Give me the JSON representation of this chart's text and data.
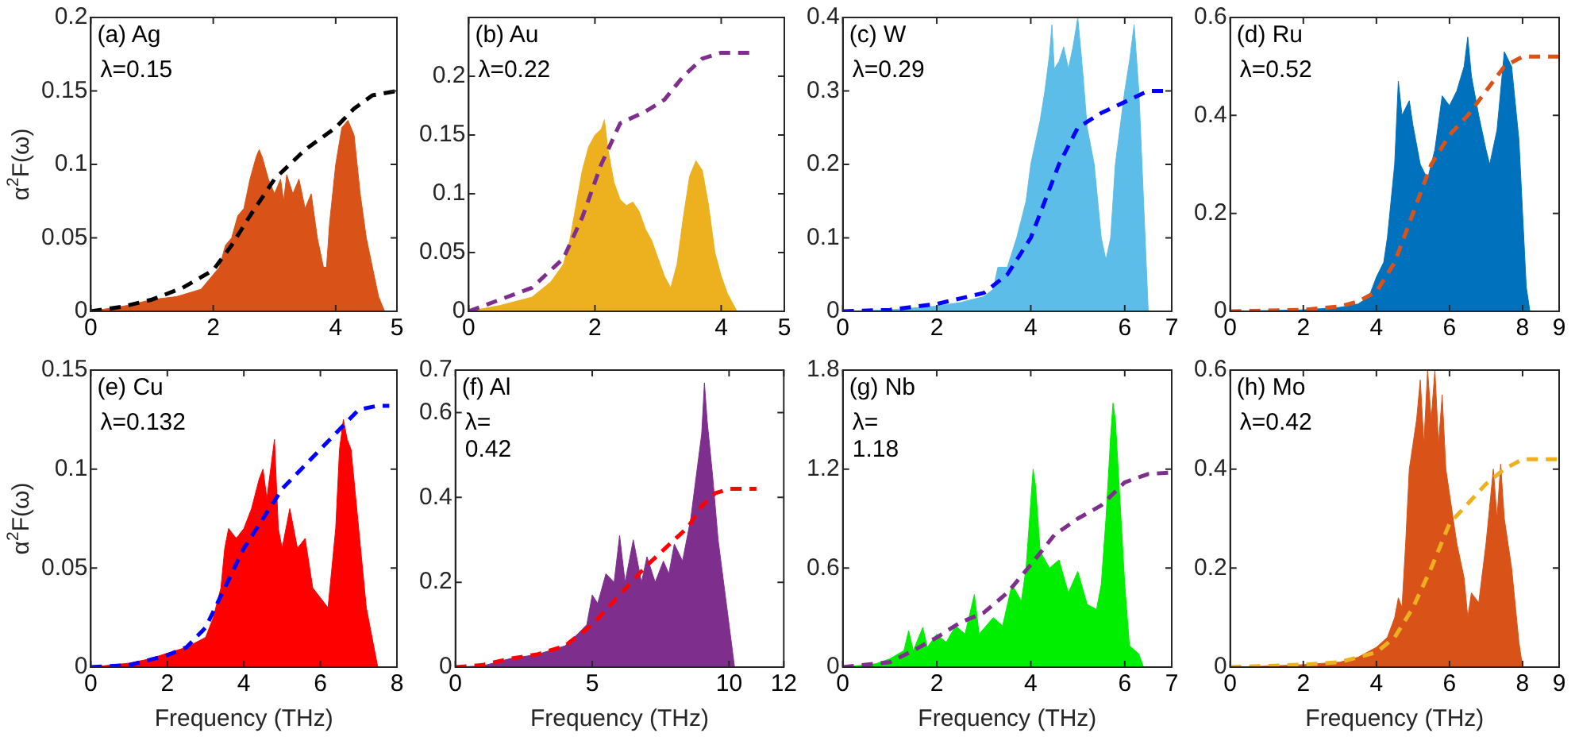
{
  "chart_data": [
    {
      "type": "area",
      "title": "(a) Ag",
      "ylabel": "α$^{2}$F(ω)",
      "xlim": [
        0,
        5
      ],
      "xticks": [
        0,
        2,
        4,
        5
      ],
      "ylim": [
        0,
        0.2
      ],
      "yticks": [
        0,
        0.05,
        0.1,
        0.15,
        0.2
      ],
      "annotations": [
        "λ=0.15"
      ],
      "series": [
        {
          "color": "#d95319",
          "x": [
            0,
            0.3,
            0.6,
            1.0,
            1.4,
            1.8,
            2.0,
            2.1,
            2.2,
            2.3,
            2.4,
            2.5,
            2.6,
            2.7,
            2.75,
            2.8,
            2.9,
            3.0,
            3.1,
            3.15,
            3.2,
            3.3,
            3.4,
            3.5,
            3.6,
            3.7,
            3.8,
            3.85,
            3.9,
            4.0,
            4.1,
            4.2,
            4.3,
            4.4,
            4.5,
            4.6,
            4.7,
            4.8
          ],
          "values": [
            0,
            0.002,
            0.004,
            0.008,
            0.01,
            0.015,
            0.025,
            0.03,
            0.045,
            0.05,
            0.065,
            0.07,
            0.09,
            0.105,
            0.11,
            0.105,
            0.09,
            0.08,
            0.09,
            0.075,
            0.093,
            0.08,
            0.09,
            0.07,
            0.08,
            0.05,
            0.03,
            0.03,
            0.06,
            0.1,
            0.125,
            0.13,
            0.12,
            0.08,
            0.05,
            0.03,
            0.01,
            0
          ]
        },
        {
          "type": "line",
          "color": "#000000",
          "line_style": "dashed",
          "x": [
            0,
            0.5,
            1,
            1.5,
            2,
            2.3,
            2.6,
            3,
            3.5,
            4,
            4.3,
            4.6,
            5
          ],
          "values": [
            0,
            0.003,
            0.008,
            0.016,
            0.028,
            0.045,
            0.065,
            0.09,
            0.11,
            0.125,
            0.138,
            0.147,
            0.15
          ]
        }
      ]
    },
    {
      "type": "area",
      "title": "(b) Au",
      "xlim": [
        0,
        5
      ],
      "xticks": [
        0,
        2,
        4,
        5
      ],
      "ylim": [
        0,
        0.25
      ],
      "yticks": [
        0,
        0.05,
        0.1,
        0.15,
        0.2
      ],
      "annotations": [
        "λ=0.22"
      ],
      "series": [
        {
          "color": "#edb120",
          "x": [
            0,
            0.5,
            1.0,
            1.3,
            1.5,
            1.6,
            1.7,
            1.8,
            1.9,
            2.0,
            2.1,
            2.15,
            2.2,
            2.3,
            2.4,
            2.5,
            2.6,
            2.7,
            2.8,
            2.9,
            3.0,
            3.1,
            3.2,
            3.3,
            3.4,
            3.5,
            3.6,
            3.7,
            3.8,
            3.9,
            4.0,
            4.1,
            4.25
          ],
          "values": [
            0,
            0.005,
            0.012,
            0.025,
            0.04,
            0.06,
            0.09,
            0.12,
            0.14,
            0.15,
            0.155,
            0.163,
            0.14,
            0.11,
            0.095,
            0.09,
            0.093,
            0.085,
            0.07,
            0.06,
            0.045,
            0.03,
            0.02,
            0.04,
            0.08,
            0.115,
            0.128,
            0.12,
            0.09,
            0.05,
            0.03,
            0.015,
            0
          ]
        },
        {
          "type": "line",
          "color": "#7e2f8e",
          "line_style": "dashed",
          "x": [
            0,
            0.5,
            1,
            1.5,
            1.8,
            2.1,
            2.4,
            2.8,
            3.1,
            3.4,
            3.7,
            4.0,
            4.5
          ],
          "values": [
            0,
            0.01,
            0.02,
            0.045,
            0.08,
            0.125,
            0.16,
            0.17,
            0.18,
            0.2,
            0.215,
            0.22,
            0.22
          ]
        }
      ]
    },
    {
      "type": "area",
      "title": "(c) W",
      "xlim": [
        0,
        7
      ],
      "xticks": [
        0,
        2,
        4,
        6,
        7
      ],
      "ylim": [
        0,
        0.4
      ],
      "yticks": [
        0,
        0.1,
        0.2,
        0.3,
        0.4
      ],
      "annotations": [
        "λ=0.29"
      ],
      "series": [
        {
          "color": "#5bbde8",
          "x": [
            0,
            1,
            2,
            2.5,
            3,
            3.2,
            3.3,
            3.5,
            3.7,
            3.9,
            4.0,
            4.2,
            4.3,
            4.4,
            4.45,
            4.5,
            4.6,
            4.7,
            4.8,
            4.9,
            5.0,
            5.1,
            5.2,
            5.35,
            5.5,
            5.6,
            5.7,
            5.8,
            5.9,
            6.0,
            6.1,
            6.2,
            6.3,
            6.4,
            6.5
          ],
          "values": [
            0,
            0.002,
            0.007,
            0.012,
            0.02,
            0.03,
            0.06,
            0.06,
            0.1,
            0.15,
            0.2,
            0.26,
            0.3,
            0.35,
            0.39,
            0.33,
            0.34,
            0.36,
            0.33,
            0.36,
            0.4,
            0.33,
            0.25,
            0.2,
            0.1,
            0.07,
            0.1,
            0.2,
            0.25,
            0.3,
            0.34,
            0.39,
            0.3,
            0.15,
            0
          ]
        },
        {
          "type": "line",
          "color": "#0000ff",
          "line_style": "dashed",
          "x": [
            0,
            1,
            2,
            3,
            3.5,
            4.0,
            4.3,
            4.6,
            5,
            5.5,
            6,
            6.5,
            7
          ],
          "values": [
            0,
            0.002,
            0.01,
            0.025,
            0.05,
            0.1,
            0.15,
            0.2,
            0.25,
            0.27,
            0.285,
            0.3,
            0.3
          ]
        }
      ]
    },
    {
      "type": "area",
      "title": "(d) Ru",
      "xlim": [
        0,
        9
      ],
      "xticks": [
        0,
        2,
        4,
        6,
        8,
        9
      ],
      "ylim": [
        0,
        0.6
      ],
      "yticks": [
        0,
        0.2,
        0.4,
        0.6
      ],
      "annotations": [
        "λ=0.52"
      ],
      "series": [
        {
          "color": "#0072bd",
          "x": [
            0,
            2,
            3,
            3.5,
            3.8,
            4.0,
            4.2,
            4.3,
            4.5,
            4.6,
            4.7,
            4.9,
            5.0,
            5.2,
            5.4,
            5.6,
            5.8,
            6.0,
            6.2,
            6.4,
            6.5,
            6.6,
            6.8,
            7.0,
            7.1,
            7.3,
            7.5,
            7.7,
            7.9,
            8.0,
            8.1,
            8.2
          ],
          "values": [
            0,
            0.003,
            0.008,
            0.015,
            0.03,
            0.07,
            0.1,
            0.15,
            0.3,
            0.47,
            0.4,
            0.43,
            0.38,
            0.3,
            0.27,
            0.33,
            0.44,
            0.42,
            0.45,
            0.5,
            0.56,
            0.48,
            0.4,
            0.33,
            0.3,
            0.37,
            0.53,
            0.5,
            0.35,
            0.2,
            0.05,
            0
          ]
        },
        {
          "type": "line",
          "color": "#d95319",
          "line_style": "dashed",
          "x": [
            0,
            2,
            3,
            3.5,
            4,
            4.5,
            5,
            5.5,
            6,
            6.5,
            7,
            7.5,
            8,
            9
          ],
          "values": [
            0,
            0.003,
            0.01,
            0.02,
            0.04,
            0.1,
            0.2,
            0.3,
            0.36,
            0.4,
            0.45,
            0.5,
            0.52,
            0.52
          ]
        }
      ]
    },
    {
      "type": "area",
      "title": "(e) Cu",
      "ylabel": "α$^{2}$F(ω)",
      "xlabel": "Frequency (THz)",
      "xlim": [
        0,
        8
      ],
      "xticks": [
        0,
        2,
        4,
        6,
        8
      ],
      "ylim": [
        0,
        0.15
      ],
      "yticks": [
        0,
        0.05,
        0.1,
        0.15
      ],
      "annotations": [
        "λ=0.132"
      ],
      "series": [
        {
          "color": "#ff0000",
          "x": [
            0,
            1,
            1.5,
            2,
            2.5,
            3,
            3.2,
            3.4,
            3.5,
            3.6,
            3.8,
            4.0,
            4.2,
            4.4,
            4.5,
            4.6,
            4.8,
            4.9,
            5.0,
            5.2,
            5.4,
            5.6,
            5.8,
            6.0,
            6.2,
            6.4,
            6.5,
            6.6,
            6.7,
            6.8,
            7.0,
            7.2,
            7.4,
            7.5
          ],
          "values": [
            0,
            0.002,
            0.004,
            0.007,
            0.01,
            0.015,
            0.025,
            0.04,
            0.06,
            0.07,
            0.065,
            0.07,
            0.08,
            0.095,
            0.1,
            0.085,
            0.115,
            0.07,
            0.06,
            0.08,
            0.06,
            0.065,
            0.04,
            0.035,
            0.03,
            0.07,
            0.11,
            0.125,
            0.115,
            0.11,
            0.07,
            0.03,
            0.01,
            0
          ]
        },
        {
          "type": "line",
          "color": "#0000ff",
          "line_style": "dashed",
          "x": [
            0,
            1,
            2,
            2.5,
            3,
            3.5,
            4,
            4.5,
            5,
            5.5,
            6,
            6.5,
            7,
            7.5,
            7.8
          ],
          "values": [
            0,
            0.001,
            0.006,
            0.01,
            0.02,
            0.04,
            0.06,
            0.075,
            0.09,
            0.1,
            0.11,
            0.12,
            0.13,
            0.132,
            0.132
          ]
        }
      ]
    },
    {
      "type": "area",
      "title": "(f) Al",
      "xlabel": "Frequency (THz)",
      "xlim": [
        0,
        12
      ],
      "xticks": [
        0,
        5,
        10,
        12
      ],
      "ylim": [
        0,
        0.7
      ],
      "yticks": [
        0,
        0.2,
        0.4,
        0.6,
        0.7
      ],
      "annotations": [
        "λ=\n0.42"
      ],
      "series": [
        {
          "color": "#7e2f8e",
          "x": [
            0,
            1,
            2,
            3,
            4,
            4.5,
            4.8,
            5,
            5.2,
            5.5,
            5.8,
            6,
            6.2,
            6.5,
            6.8,
            7,
            7.3,
            7.6,
            7.8,
            8,
            8.3,
            8.6,
            8.8,
            9.0,
            9.1,
            9.2,
            9.4,
            9.6,
            9.8,
            10.0,
            10.2
          ],
          "values": [
            0,
            0.003,
            0.02,
            0.03,
            0.05,
            0.08,
            0.1,
            0.17,
            0.15,
            0.22,
            0.2,
            0.31,
            0.2,
            0.3,
            0.2,
            0.26,
            0.2,
            0.25,
            0.22,
            0.29,
            0.25,
            0.35,
            0.45,
            0.55,
            0.67,
            0.58,
            0.45,
            0.3,
            0.2,
            0.1,
            0
          ]
        },
        {
          "type": "line",
          "color": "#ff0000",
          "line_style": "dashed",
          "x": [
            0,
            1,
            2,
            3,
            4,
            5,
            6,
            7,
            8,
            8.5,
            9,
            9.5,
            10,
            11
          ],
          "values": [
            0,
            0.005,
            0.02,
            0.03,
            0.05,
            0.1,
            0.17,
            0.24,
            0.3,
            0.33,
            0.38,
            0.41,
            0.42,
            0.42
          ]
        }
      ]
    },
    {
      "type": "area",
      "title": "(g) Nb",
      "xlabel": "Frequency (THz)",
      "xlim": [
        0,
        7
      ],
      "xticks": [
        0,
        2,
        4,
        6,
        7
      ],
      "ylim": [
        0,
        1.8
      ],
      "yticks": [
        0,
        0.6,
        1.2,
        1.8
      ],
      "annotations": [
        "λ=\n1.18"
      ],
      "series": [
        {
          "color": "#00ee00",
          "x": [
            0,
            0.7,
            1,
            1.3,
            1.4,
            1.5,
            1.7,
            1.8,
            2,
            2.2,
            2.4,
            2.6,
            2.8,
            2.9,
            3.2,
            3.4,
            3.6,
            3.8,
            3.9,
            4.0,
            4.05,
            4.1,
            4.2,
            4.4,
            4.6,
            4.8,
            5.0,
            5.2,
            5.4,
            5.5,
            5.6,
            5.7,
            5.75,
            5.8,
            5.9,
            6.0,
            6.1,
            6.3,
            6.4
          ],
          "values": [
            0,
            0.02,
            0.05,
            0.1,
            0.22,
            0.1,
            0.24,
            0.12,
            0.2,
            0.15,
            0.25,
            0.2,
            0.44,
            0.2,
            0.3,
            0.25,
            0.5,
            0.4,
            0.6,
            1.0,
            1.2,
            1.1,
            0.7,
            0.6,
            0.65,
            0.45,
            0.58,
            0.38,
            0.35,
            0.5,
            0.9,
            1.4,
            1.6,
            1.5,
            1.0,
            0.5,
            0.13,
            0.08,
            0
          ]
        },
        {
          "type": "line",
          "color": "#7e2f8e",
          "line_style": "dashed",
          "x": [
            0,
            1,
            1.5,
            2,
            2.5,
            3,
            3.5,
            4,
            4.5,
            5,
            5.5,
            6,
            6.5,
            7
          ],
          "values": [
            0,
            0.03,
            0.1,
            0.18,
            0.27,
            0.33,
            0.45,
            0.62,
            0.8,
            0.9,
            0.98,
            1.12,
            1.17,
            1.18
          ]
        }
      ]
    },
    {
      "type": "area",
      "title": "(h) Mo",
      "xlabel": "Frequency (THz)",
      "xlim": [
        0,
        9
      ],
      "xticks": [
        0,
        2,
        4,
        6,
        8,
        9
      ],
      "ylim": [
        0,
        0.6
      ],
      "yticks": [
        0,
        0.2,
        0.4,
        0.6
      ],
      "annotations": [
        "λ=0.42"
      ],
      "series": [
        {
          "color": "#d95319",
          "x": [
            0,
            1,
            2,
            3,
            3.5,
            4,
            4.3,
            4.5,
            4.6,
            4.7,
            4.8,
            4.9,
            5.0,
            5.1,
            5.2,
            5.3,
            5.4,
            5.5,
            5.6,
            5.7,
            5.8,
            5.9,
            6.0,
            6.2,
            6.4,
            6.5,
            6.6,
            6.8,
            7.0,
            7.2,
            7.3,
            7.4,
            7.5,
            7.7,
            7.9,
            8.0
          ],
          "values": [
            0,
            0.002,
            0.005,
            0.01,
            0.02,
            0.04,
            0.06,
            0.1,
            0.14,
            0.12,
            0.25,
            0.4,
            0.45,
            0.5,
            0.58,
            0.45,
            0.6,
            0.5,
            0.6,
            0.45,
            0.55,
            0.4,
            0.35,
            0.25,
            0.18,
            0.1,
            0.15,
            0.13,
            0.25,
            0.4,
            0.3,
            0.41,
            0.3,
            0.2,
            0.05,
            0
          ]
        },
        {
          "type": "line",
          "color": "#edb120",
          "line_style": "dashed",
          "x": [
            0,
            2,
            3,
            4,
            4.5,
            5,
            5.5,
            6,
            6.5,
            7,
            7.5,
            8,
            9
          ],
          "values": [
            0,
            0.005,
            0.01,
            0.03,
            0.06,
            0.12,
            0.2,
            0.29,
            0.33,
            0.37,
            0.4,
            0.42,
            0.42
          ]
        }
      ]
    }
  ]
}
